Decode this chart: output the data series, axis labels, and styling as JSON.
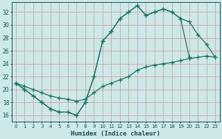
{
  "xlabel": "Humidex (Indice chaleur)",
  "bg_color": "#cce8e8",
  "grid_color": "#d4a0a0",
  "line_color": "#1a7060",
  "xlim": [
    -0.5,
    23.5
  ],
  "ylim": [
    15,
    33.5
  ],
  "yticks": [
    16,
    18,
    20,
    22,
    24,
    26,
    28,
    30,
    32
  ],
  "xticks": [
    0,
    1,
    2,
    3,
    4,
    5,
    6,
    7,
    8,
    9,
    10,
    11,
    12,
    13,
    14,
    15,
    16,
    17,
    18,
    19,
    20,
    21,
    22,
    23
  ],
  "line1_x": [
    0,
    1,
    2,
    3,
    4,
    5,
    6,
    7,
    8,
    9,
    10,
    11,
    12,
    13,
    14,
    15,
    16,
    17,
    18,
    19,
    20
  ],
  "line1_y": [
    21,
    20,
    19,
    18,
    17,
    16.5,
    16.5,
    16,
    18,
    22,
    27.5,
    29,
    31,
    32,
    33,
    31.5,
    32,
    32.5,
    32,
    31,
    25
  ],
  "line2_x": [
    0,
    1,
    2,
    3,
    4,
    5,
    6,
    7,
    8,
    9,
    10,
    11,
    12,
    13,
    14,
    15,
    16,
    17,
    18,
    19,
    20,
    21,
    22,
    23
  ],
  "line2_y": [
    21,
    20,
    19,
    18,
    17,
    16.5,
    16.5,
    16,
    18,
    22,
    27.5,
    29,
    31,
    32,
    33,
    31.5,
    32,
    32.5,
    32,
    31,
    30.5,
    28.5,
    27,
    25
  ],
  "line3_x": [
    0,
    1,
    2,
    3,
    4,
    5,
    6,
    7,
    8,
    9,
    10,
    11,
    12,
    13,
    14,
    15,
    16,
    17,
    18,
    19,
    20,
    21,
    22,
    23
  ],
  "line3_y": [
    21,
    20.5,
    20,
    19.5,
    19,
    18.7,
    18.5,
    18.2,
    18.5,
    19.5,
    20.5,
    21,
    21.5,
    22,
    23,
    23.5,
    23.8,
    24,
    24.2,
    24.5,
    24.8,
    25,
    25.2,
    25
  ]
}
